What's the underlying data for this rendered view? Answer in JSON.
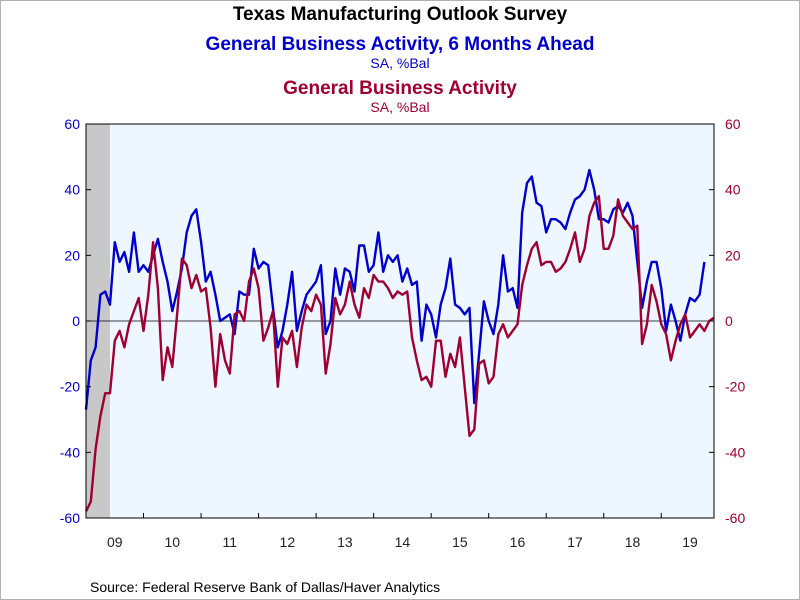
{
  "chart_data": {
    "type": "line",
    "title": "Texas Manufacturing Outlook Survey",
    "grid": false,
    "legend": "top-center",
    "colors": {
      "plot_bg": "#EEF6FF",
      "shade": "#C8C8C8",
      "axis_text": "#222222"
    },
    "x_tick_labels": [
      "09",
      "10",
      "11",
      "12",
      "13",
      "14",
      "15",
      "16",
      "17",
      "18",
      "19"
    ],
    "y_left": {
      "ylim": [
        -60,
        60
      ],
      "ticks": [
        -60,
        -40,
        -20,
        0,
        20,
        40,
        60
      ],
      "tick_labels": [
        "-60",
        "-40",
        "-20",
        "0",
        "20",
        "40",
        "60"
      ],
      "color": "#0000CC"
    },
    "y_right": {
      "ylim": [
        -60,
        60
      ],
      "ticks": [
        -60,
        -40,
        -20,
        0,
        20,
        40,
        60
      ],
      "tick_labels": [
        "-60",
        "-40",
        "-20",
        "0",
        "20",
        "40",
        "60"
      ],
      "color": "#A00030"
    },
    "recession_shading": {
      "start": "2009-01",
      "end": "2009-06"
    },
    "source": "Source:  Federal Reserve Bank of Dallas/Haver Analytics",
    "start_month": "2009-01",
    "series": [
      {
        "name": "General Business Activity, 6 Months Ahead",
        "subtitle": "SA, %Bal",
        "axis": "left",
        "color": "#0000CC",
        "values": [
          -27,
          -12,
          -8,
          8,
          9,
          5,
          24,
          18,
          21,
          15,
          27,
          15,
          17,
          15,
          20,
          25,
          18,
          12,
          3,
          9,
          16,
          27,
          32,
          34,
          24,
          12,
          15,
          8,
          0,
          1,
          2,
          -4,
          9,
          8,
          8,
          22,
          16,
          18,
          17,
          4,
          -8,
          -3,
          5,
          15,
          -3,
          3,
          8,
          10,
          12,
          17,
          -4,
          0,
          16,
          8,
          16,
          15,
          9,
          23,
          23,
          15,
          17,
          27,
          15,
          20,
          18,
          20,
          12,
          16,
          11,
          12,
          -6,
          5,
          2,
          -5,
          5,
          10,
          19,
          5,
          4,
          2,
          4,
          -25,
          -10,
          6,
          0,
          -4,
          5,
          20,
          9,
          10,
          4,
          33,
          42,
          44,
          36,
          35,
          27,
          31,
          31,
          30,
          28,
          33,
          37,
          38,
          40,
          46,
          40,
          31,
          31,
          30,
          34,
          35,
          33,
          36,
          32,
          18,
          4,
          12,
          18,
          18,
          10,
          -3,
          5,
          0,
          -6,
          2,
          7,
          6,
          8,
          18
        ]
      },
      {
        "name": "General Business Activity",
        "subtitle": "SA, %Bal",
        "axis": "right",
        "color": "#A00030",
        "values": [
          -58,
          -55,
          -39,
          -29,
          -22,
          -22,
          -6,
          -3,
          -8,
          -1,
          3,
          7,
          -3,
          8,
          24,
          10,
          -18,
          -8,
          -14,
          2,
          19,
          17,
          10,
          14,
          9,
          10,
          -2,
          -20,
          -4,
          -12,
          -16,
          2,
          3,
          0,
          12,
          16,
          10,
          -6,
          -2,
          3,
          -20,
          -5,
          -7,
          -3,
          -14,
          -2,
          5,
          3,
          8,
          5,
          -16,
          -7,
          7,
          2,
          5,
          12,
          5,
          1,
          10,
          7,
          14,
          12,
          12,
          10,
          7,
          9,
          8,
          9,
          -5,
          -12,
          -18,
          -17,
          -20,
          -6,
          -6,
          -17,
          -10,
          -14,
          -5,
          -20,
          -35,
          -33,
          -13,
          -12,
          -19,
          -17,
          -4,
          -1,
          -5,
          -3,
          -1,
          11,
          17,
          22,
          24,
          17,
          18,
          18,
          15,
          16,
          18,
          22,
          27,
          18,
          22,
          32,
          36,
          38,
          22,
          22,
          26,
          37,
          32,
          30,
          28,
          29,
          -7,
          -1,
          11,
          6,
          -1,
          -4,
          -12,
          -6,
          -1,
          2,
          -5,
          -3,
          -1,
          -3,
          0,
          1
        ]
      }
    ]
  }
}
